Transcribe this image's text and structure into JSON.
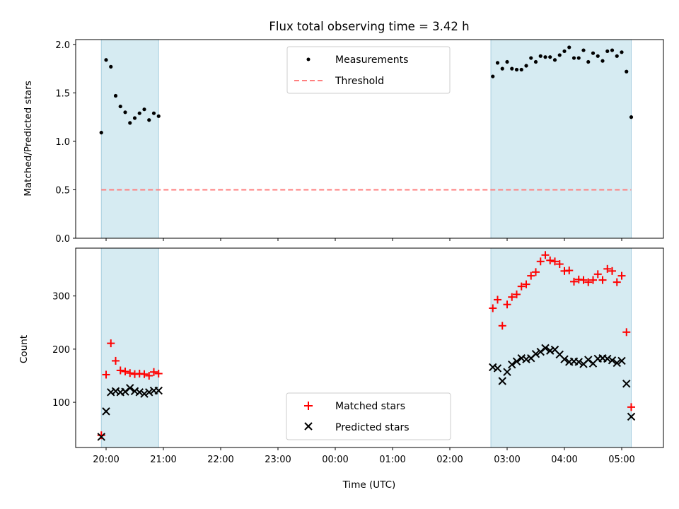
{
  "chart_data": [
    {
      "type": "scatter",
      "title": "Flux total observing time = 3.42 h",
      "ylabel": "Matched/Predicted stars",
      "ylim": [
        0,
        2.05
      ],
      "yticks": [
        "0.0",
        "0.5",
        "1.0",
        "1.5",
        "2.0"
      ],
      "grid": false,
      "legend_position": "top-center",
      "shaded_intervals": [
        [
          "19:55",
          "20:55"
        ],
        [
          "02:43",
          "05:10"
        ]
      ],
      "threshold": {
        "name": "Threshold",
        "value": 0.5,
        "x_range": [
          "19:55",
          "05:10"
        ],
        "color": "#ff7f7f"
      },
      "series": [
        {
          "name": "Measurements",
          "marker": "dot",
          "color": "#000000",
          "x": [
            "19:55",
            "20:00",
            "20:05",
            "20:10",
            "20:15",
            "20:20",
            "20:25",
            "20:30",
            "20:35",
            "20:40",
            "20:45",
            "20:50",
            "20:55",
            "02:45",
            "02:50",
            "02:55",
            "03:00",
            "03:05",
            "03:10",
            "03:15",
            "03:20",
            "03:25",
            "03:30",
            "03:35",
            "03:40",
            "03:45",
            "03:50",
            "03:55",
            "04:00",
            "04:05",
            "04:10",
            "04:15",
            "04:20",
            "04:25",
            "04:30",
            "04:35",
            "04:40",
            "04:45",
            "04:50",
            "04:55",
            "05:00",
            "05:05",
            "05:10"
          ],
          "y": [
            1.09,
            1.84,
            1.77,
            1.47,
            1.36,
            1.3,
            1.19,
            1.24,
            1.29,
            1.33,
            1.22,
            1.29,
            1.26,
            1.67,
            1.81,
            1.75,
            1.82,
            1.75,
            1.74,
            1.74,
            1.78,
            1.86,
            1.82,
            1.88,
            1.87,
            1.87,
            1.84,
            1.89,
            1.93,
            1.97,
            1.86,
            1.86,
            1.94,
            1.82,
            1.91,
            1.88,
            1.83,
            1.93,
            1.94,
            1.88,
            1.92,
            1.72,
            1.25
          ]
        }
      ]
    },
    {
      "type": "scatter",
      "xlabel": "Time (UTC)",
      "ylabel": "Count",
      "ylim": [
        15,
        390
      ],
      "yticks": [
        "100",
        "200",
        "300"
      ],
      "xticks": [
        "20:00",
        "21:00",
        "22:00",
        "23:00",
        "00:00",
        "01:00",
        "02:00",
        "03:00",
        "04:00",
        "05:00"
      ],
      "grid": false,
      "legend_position": "bottom-center",
      "shaded_intervals": [
        [
          "19:55",
          "20:55"
        ],
        [
          "02:43",
          "05:10"
        ]
      ],
      "series": [
        {
          "name": "Matched stars",
          "marker": "plus",
          "color": "#ff0000",
          "x": [
            "19:55",
            "20:00",
            "20:05",
            "20:10",
            "20:15",
            "20:20",
            "20:25",
            "20:30",
            "20:35",
            "20:40",
            "20:45",
            "20:50",
            "20:55",
            "02:45",
            "02:50",
            "02:55",
            "03:00",
            "03:05",
            "03:10",
            "03:15",
            "03:20",
            "03:25",
            "03:30",
            "03:35",
            "03:40",
            "03:45",
            "03:50",
            "03:55",
            "04:00",
            "04:05",
            "04:10",
            "04:15",
            "04:20",
            "04:25",
            "04:30",
            "04:35",
            "04:40",
            "04:45",
            "04:50",
            "04:55",
            "05:00",
            "05:05",
            "05:10"
          ],
          "y": [
            38,
            152,
            211,
            178,
            160,
            158,
            155,
            153,
            154,
            153,
            150,
            157,
            154,
            277,
            293,
            244,
            284,
            298,
            303,
            318,
            322,
            338,
            345,
            365,
            377,
            367,
            365,
            360,
            347,
            348,
            327,
            331,
            330,
            326,
            330,
            341,
            330,
            351,
            347,
            326,
            338,
            232,
            91
          ]
        },
        {
          "name": "Predicted stars",
          "marker": "x",
          "color": "#000000",
          "x": [
            "19:55",
            "20:00",
            "20:05",
            "20:10",
            "20:15",
            "20:20",
            "20:25",
            "20:30",
            "20:35",
            "20:40",
            "20:45",
            "20:50",
            "20:55",
            "02:45",
            "02:50",
            "02:55",
            "03:00",
            "03:05",
            "03:10",
            "03:15",
            "03:20",
            "03:25",
            "03:30",
            "03:35",
            "03:40",
            "03:45",
            "03:50",
            "03:55",
            "04:00",
            "04:05",
            "04:10",
            "04:15",
            "04:20",
            "04:25",
            "04:30",
            "04:35",
            "04:40",
            "04:45",
            "04:50",
            "04:55",
            "05:00",
            "05:05",
            "05:10"
          ],
          "y": [
            35,
            83,
            119,
            121,
            119,
            120,
            127,
            121,
            119,
            116,
            119,
            122,
            122,
            166,
            164,
            140,
            157,
            171,
            177,
            183,
            181,
            183,
            191,
            195,
            202,
            197,
            199,
            190,
            181,
            176,
            177,
            176,
            172,
            180,
            173,
            182,
            183,
            182,
            179,
            174,
            178,
            135,
            73
          ]
        }
      ]
    }
  ]
}
